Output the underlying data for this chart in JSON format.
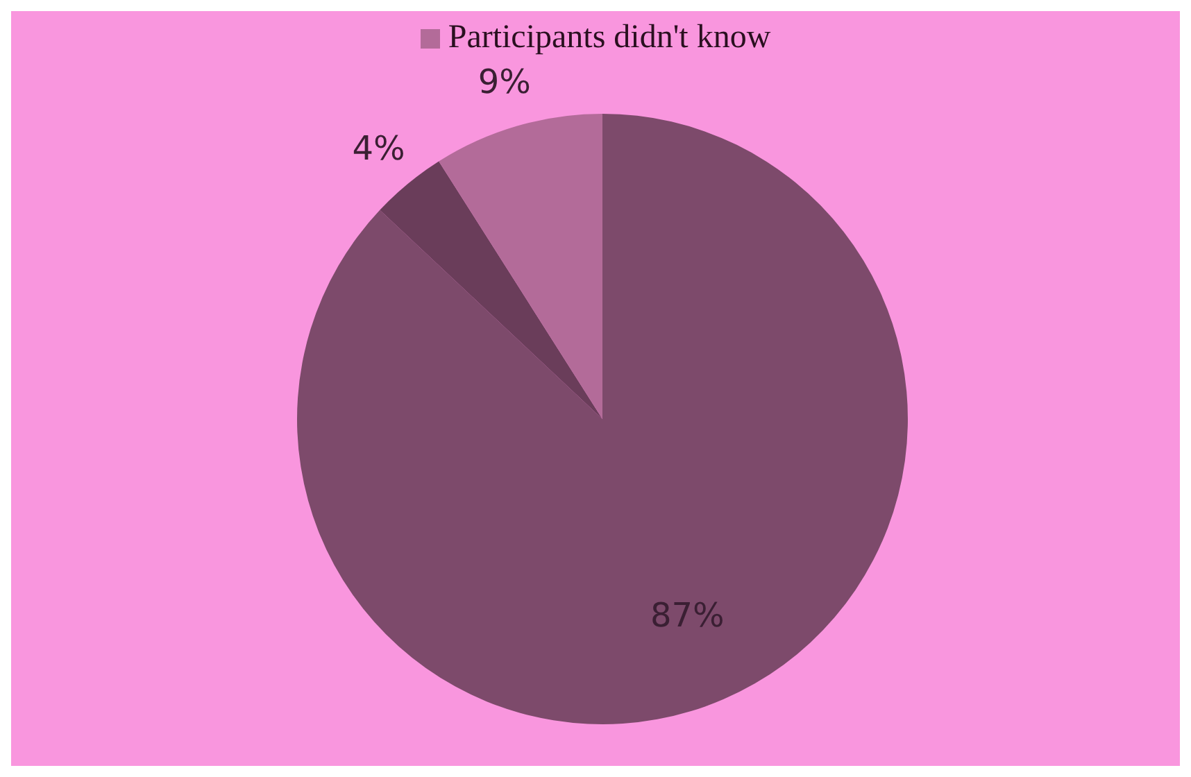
{
  "chart_data": {
    "type": "pie",
    "categories": [
      null,
      null,
      "Participants didn't know"
    ],
    "values": [
      87,
      4,
      9
    ],
    "colors": [
      "#7d4a6b",
      "#6a3d5a",
      "#b36b99"
    ],
    "value_labels": [
      "87%",
      "4%",
      "9%"
    ],
    "legend": "top"
  }
}
